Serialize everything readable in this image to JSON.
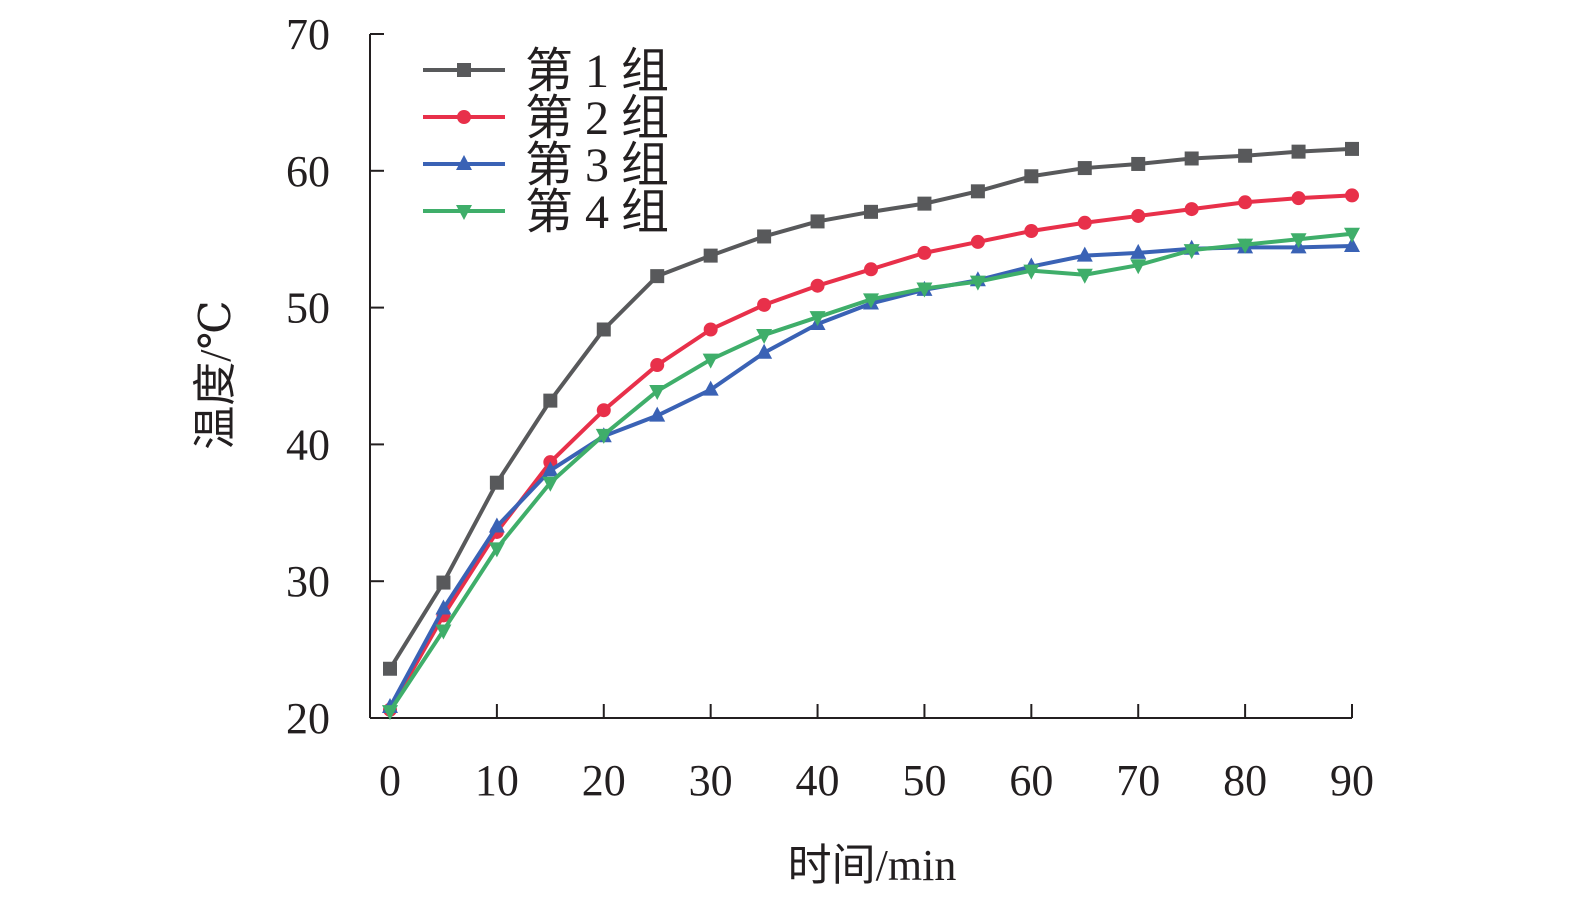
{
  "chart_data": {
    "type": "line",
    "title": "",
    "xlabel": "时间/min",
    "ylabel": "温度/℃",
    "xlim": [
      0,
      90
    ],
    "ylim": [
      20,
      70
    ],
    "xticks": [
      "0",
      "10",
      "20",
      "30",
      "40",
      "50",
      "60",
      "70",
      "80",
      "90"
    ],
    "yticks": [
      "20",
      "30",
      "40",
      "50",
      "60",
      "70"
    ],
    "grid": false,
    "legend_position": "top-left",
    "x": [
      0,
      5,
      10,
      15,
      20,
      25,
      30,
      35,
      40,
      45,
      50,
      55,
      60,
      65,
      70,
      75,
      80,
      85,
      90
    ],
    "series": [
      {
        "name": "第 1 组",
        "color": "#58595b",
        "marker": "square",
        "values": [
          23.6,
          29.9,
          37.2,
          43.2,
          48.4,
          52.3,
          53.8,
          55.2,
          56.3,
          57.0,
          57.6,
          58.5,
          59.6,
          60.2,
          60.5,
          60.9,
          61.1,
          61.4,
          61.6
        ]
      },
      {
        "name": "第 2 组",
        "color": "#e8304a",
        "marker": "circle",
        "values": [
          20.6,
          27.5,
          33.6,
          38.7,
          42.5,
          45.8,
          48.4,
          50.2,
          51.6,
          52.8,
          54.0,
          54.8,
          55.6,
          56.2,
          56.7,
          57.2,
          57.7,
          58.0,
          58.2
        ]
      },
      {
        "name": "第 3 组",
        "color": "#3a62b5",
        "marker": "triangle-up",
        "values": [
          20.8,
          28.0,
          34.0,
          38.1,
          40.6,
          42.1,
          44.0,
          46.7,
          48.8,
          50.3,
          51.3,
          52.0,
          53.0,
          53.8,
          54.0,
          54.3,
          54.4,
          54.4,
          54.5
        ]
      },
      {
        "name": "第 4 组",
        "color": "#3fae6a",
        "marker": "triangle-down",
        "values": [
          20.5,
          26.4,
          32.4,
          37.2,
          40.7,
          43.9,
          46.2,
          48.0,
          49.3,
          50.6,
          51.4,
          51.9,
          52.7,
          52.4,
          53.1,
          54.2,
          54.6,
          55.0,
          55.4
        ]
      }
    ]
  }
}
